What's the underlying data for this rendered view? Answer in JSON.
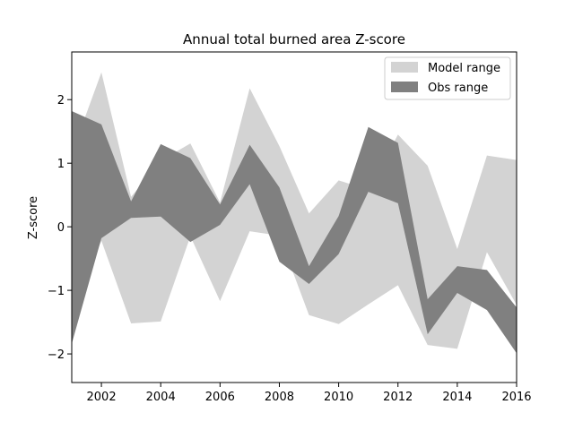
{
  "chart_data": {
    "type": "area",
    "title": "Annual total burned area Z-score",
    "xlabel": "",
    "ylabel": "Z-score",
    "x": [
      2001,
      2002,
      2003,
      2004,
      2005,
      2006,
      2007,
      2008,
      2009,
      2010,
      2011,
      2012,
      2013,
      2014,
      2015,
      2016
    ],
    "xlim": [
      2001,
      2016
    ],
    "ylim": [
      -2.45,
      2.75
    ],
    "xticks": [
      2002,
      2004,
      2006,
      2008,
      2010,
      2012,
      2014,
      2016
    ],
    "yticks": [
      -2,
      -1,
      0,
      1,
      2
    ],
    "ytick_labels": [
      "−2",
      "−1",
      "0",
      "1",
      "2"
    ],
    "legend_position": "top-right",
    "grid": false,
    "series": [
      {
        "name": "Model range",
        "color": "#d3d3d3",
        "upper": [
          1.15,
          2.43,
          0.47,
          1.04,
          1.31,
          0.38,
          2.18,
          1.27,
          0.21,
          0.73,
          0.58,
          1.45,
          0.96,
          -0.35,
          1.12,
          1.05
        ],
        "lower": [
          -1.3,
          -0.22,
          -1.52,
          -1.49,
          -0.15,
          -1.17,
          -0.07,
          -0.14,
          -1.39,
          -1.53,
          -1.22,
          -0.92,
          -1.86,
          -1.92,
          -0.4,
          -1.23
        ]
      },
      {
        "name": "Obs range",
        "color": "#808080",
        "upper": [
          1.82,
          1.61,
          0.4,
          1.3,
          1.08,
          0.35,
          1.29,
          0.62,
          -0.62,
          0.17,
          1.57,
          1.32,
          -1.14,
          -0.62,
          -0.68,
          -1.27
        ],
        "lower": [
          -1.84,
          -0.18,
          0.14,
          0.16,
          -0.24,
          0.03,
          0.67,
          -0.55,
          -0.9,
          -0.43,
          0.55,
          0.37,
          -1.69,
          -1.04,
          -1.31,
          -1.99
        ]
      }
    ]
  }
}
